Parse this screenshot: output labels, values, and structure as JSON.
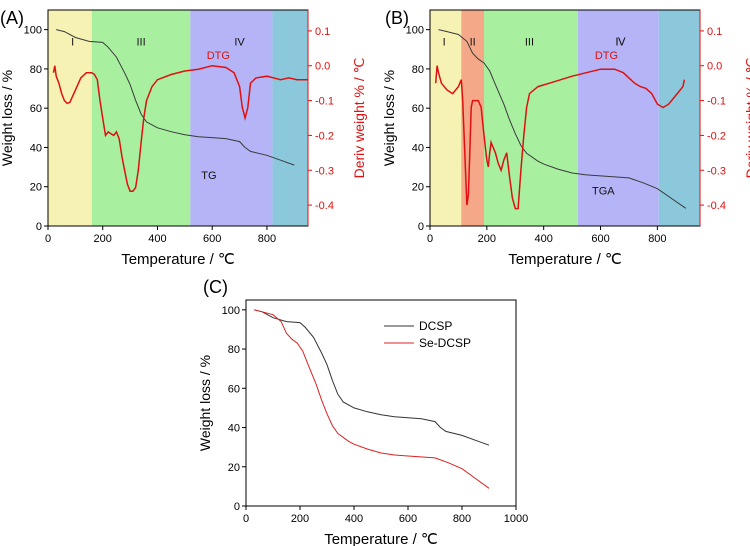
{
  "panels": [
    {
      "label": "(A)",
      "xlabel": "Temperature / ℃",
      "ylabel_left": "Weight loss / %",
      "ylabel_right": "Deriv weight % / ℃",
      "xlim": [
        0,
        950
      ],
      "ylim_left": [
        0,
        110
      ],
      "ylim_right": [
        -0.46,
        0.16
      ],
      "xticks": [
        0,
        200,
        400,
        600,
        800
      ],
      "yticks_left": [
        0,
        20,
        40,
        60,
        80,
        100
      ],
      "yticks_right": [
        0.1,
        0.0,
        -0.1,
        -0.2,
        -0.3,
        -0.4
      ],
      "stage_colors": [
        "#f6f2b4",
        "#a8f0a0",
        "#b4b4f6",
        "#8cc8dc"
      ],
      "stages": [
        {
          "label": "I",
          "from": 0,
          "to": 160,
          "label_x": 90
        },
        {
          "label": "III",
          "from": 160,
          "to": 520,
          "label_x": 340
        },
        {
          "label": "IV",
          "from": 520,
          "to": 820,
          "label_x": 700
        },
        {
          "label": "",
          "from": 820,
          "to": 950,
          "label_x": 885
        }
      ],
      "stage_label_y": 92,
      "tg_label": "TG",
      "tg_label_pos": [
        560,
        24
      ],
      "dtg_label": "DTG",
      "dtg_label_pos": [
        580,
        0.02
      ],
      "tg_curve": [
        [
          30,
          100
        ],
        [
          60,
          99
        ],
        [
          100,
          96
        ],
        [
          150,
          94
        ],
        [
          200,
          93.5
        ],
        [
          220,
          91
        ],
        [
          250,
          86
        ],
        [
          280,
          78
        ],
        [
          300,
          72
        ],
        [
          320,
          64
        ],
        [
          340,
          57
        ],
        [
          360,
          53
        ],
        [
          400,
          50
        ],
        [
          450,
          48
        ],
        [
          500,
          46.5
        ],
        [
          550,
          45.5
        ],
        [
          600,
          45
        ],
        [
          650,
          44.5
        ],
        [
          700,
          43
        ],
        [
          720,
          40
        ],
        [
          740,
          38
        ],
        [
          800,
          36
        ],
        [
          850,
          33.5
        ],
        [
          900,
          31
        ]
      ],
      "dtg_curve": [
        [
          20,
          -0.02
        ],
        [
          25,
          0.0
        ],
        [
          30,
          -0.03
        ],
        [
          40,
          -0.05
        ],
        [
          50,
          -0.08
        ],
        [
          60,
          -0.1
        ],
        [
          70,
          -0.108
        ],
        [
          80,
          -0.105
        ],
        [
          100,
          -0.07
        ],
        [
          120,
          -0.035
        ],
        [
          140,
          -0.02
        ],
        [
          160,
          -0.02
        ],
        [
          170,
          -0.025
        ],
        [
          180,
          -0.04
        ],
        [
          190,
          -0.1
        ],
        [
          200,
          -0.15
        ],
        [
          210,
          -0.2
        ],
        [
          220,
          -0.19
        ],
        [
          230,
          -0.195
        ],
        [
          240,
          -0.2
        ],
        [
          250,
          -0.19
        ],
        [
          260,
          -0.21
        ],
        [
          270,
          -0.26
        ],
        [
          280,
          -0.3
        ],
        [
          290,
          -0.34
        ],
        [
          300,
          -0.36
        ],
        [
          310,
          -0.36
        ],
        [
          320,
          -0.35
        ],
        [
          330,
          -0.3
        ],
        [
          340,
          -0.22
        ],
        [
          350,
          -0.15
        ],
        [
          360,
          -0.1
        ],
        [
          380,
          -0.06
        ],
        [
          400,
          -0.04
        ],
        [
          450,
          -0.025
        ],
        [
          500,
          -0.015
        ],
        [
          550,
          -0.01
        ],
        [
          600,
          0.0
        ],
        [
          650,
          -0.005
        ],
        [
          680,
          -0.02
        ],
        [
          700,
          -0.06
        ],
        [
          710,
          -0.12
        ],
        [
          720,
          -0.15
        ],
        [
          730,
          -0.12
        ],
        [
          740,
          -0.05
        ],
        [
          760,
          -0.035
        ],
        [
          800,
          -0.03
        ],
        [
          850,
          -0.04
        ],
        [
          880,
          -0.035
        ],
        [
          910,
          -0.04
        ],
        [
          950,
          -0.04
        ]
      ]
    },
    {
      "label": "(B)",
      "xlabel": "Temperature / ℃",
      "ylabel_left": "Weight loss / %",
      "ylabel_right": "Deriv weight % / ℃",
      "xlim": [
        0,
        950
      ],
      "ylim_left": [
        0,
        110
      ],
      "ylim_right": [
        -0.46,
        0.16
      ],
      "xticks": [
        0,
        200,
        400,
        600,
        800
      ],
      "yticks_left": [
        0,
        20,
        40,
        60,
        80,
        100
      ],
      "yticks_right": [
        0.1,
        0.0,
        -0.1,
        -0.2,
        -0.3,
        -0.4
      ],
      "stage_colors": [
        "#f6f2b4",
        "#f4a888",
        "#a8f0a0",
        "#b4b4f6",
        "#8cc8dc"
      ],
      "stages": [
        {
          "label": "I",
          "from": 0,
          "to": 110,
          "label_x": 50
        },
        {
          "label": "II",
          "from": 110,
          "to": 190,
          "label_x": 150
        },
        {
          "label": "III",
          "from": 190,
          "to": 520,
          "label_x": 350
        },
        {
          "label": "Ⅳ",
          "from": 520,
          "to": 805,
          "label_x": 670
        },
        {
          "label": "",
          "from": 805,
          "to": 950,
          "label_x": 880
        }
      ],
      "stage_label_y": 92,
      "tg_label": "TGA",
      "tg_label_pos": [
        570,
        16
      ],
      "dtg_label": "DTG",
      "dtg_label_pos": [
        580,
        0.02
      ],
      "tg_curve": [
        [
          30,
          100
        ],
        [
          60,
          99
        ],
        [
          100,
          97.5
        ],
        [
          130,
          94
        ],
        [
          150,
          88
        ],
        [
          170,
          85
        ],
        [
          190,
          83
        ],
        [
          210,
          79
        ],
        [
          230,
          72
        ],
        [
          260,
          62
        ],
        [
          280,
          54
        ],
        [
          300,
          47
        ],
        [
          320,
          41
        ],
        [
          340,
          37
        ],
        [
          380,
          33
        ],
        [
          400,
          31.5
        ],
        [
          450,
          29
        ],
        [
          500,
          27
        ],
        [
          550,
          26
        ],
        [
          600,
          25.5
        ],
        [
          700,
          24.5
        ],
        [
          750,
          22
        ],
        [
          800,
          19
        ],
        [
          850,
          14
        ],
        [
          900,
          9
        ]
      ],
      "dtg_curve": [
        [
          20,
          -0.05
        ],
        [
          25,
          0.0
        ],
        [
          30,
          -0.02
        ],
        [
          40,
          -0.05
        ],
        [
          60,
          -0.07
        ],
        [
          80,
          -0.08
        ],
        [
          100,
          -0.06
        ],
        [
          110,
          -0.04
        ],
        [
          115,
          -0.1
        ],
        [
          120,
          -0.2
        ],
        [
          125,
          -0.3
        ],
        [
          130,
          -0.4
        ],
        [
          135,
          -0.37
        ],
        [
          140,
          -0.25
        ],
        [
          145,
          -0.12
        ],
        [
          150,
          -0.1
        ],
        [
          160,
          -0.1
        ],
        [
          170,
          -0.1
        ],
        [
          180,
          -0.12
        ],
        [
          190,
          -0.2
        ],
        [
          200,
          -0.27
        ],
        [
          205,
          -0.29
        ],
        [
          210,
          -0.25
        ],
        [
          215,
          -0.22
        ],
        [
          220,
          -0.23
        ],
        [
          230,
          -0.25
        ],
        [
          240,
          -0.28
        ],
        [
          250,
          -0.3
        ],
        [
          260,
          -0.27
        ],
        [
          270,
          -0.25
        ],
        [
          280,
          -0.32
        ],
        [
          290,
          -0.38
        ],
        [
          300,
          -0.41
        ],
        [
          310,
          -0.41
        ],
        [
          320,
          -0.3
        ],
        [
          330,
          -0.2
        ],
        [
          340,
          -0.12
        ],
        [
          350,
          -0.08
        ],
        [
          380,
          -0.06
        ],
        [
          420,
          -0.05
        ],
        [
          500,
          -0.03
        ],
        [
          550,
          -0.02
        ],
        [
          600,
          -0.01
        ],
        [
          650,
          -0.01
        ],
        [
          680,
          -0.02
        ],
        [
          700,
          -0.035
        ],
        [
          720,
          -0.05
        ],
        [
          740,
          -0.06
        ],
        [
          760,
          -0.065
        ],
        [
          780,
          -0.08
        ],
        [
          800,
          -0.11
        ],
        [
          820,
          -0.12
        ],
        [
          840,
          -0.11
        ],
        [
          860,
          -0.09
        ],
        [
          880,
          -0.07
        ],
        [
          890,
          -0.06
        ],
        [
          895,
          -0.04
        ]
      ]
    },
    {
      "label": "(C)",
      "xlabel": "Temperature / ℃",
      "ylabel": "Weight loss / %",
      "xlim": [
        0,
        1000
      ],
      "ylim": [
        0,
        105
      ],
      "xticks": [
        0,
        200,
        400,
        600,
        800,
        1000
      ],
      "yticks": [
        0,
        20,
        40,
        60,
        80,
        100
      ],
      "legend_position": "top-right",
      "series": [
        {
          "name": "DCSP",
          "color": "#333333",
          "points": [
            [
              30,
              100
            ],
            [
              60,
              99
            ],
            [
              100,
              96
            ],
            [
              150,
              94
            ],
            [
              200,
              93.5
            ],
            [
              220,
              91
            ],
            [
              250,
              86
            ],
            [
              280,
              78
            ],
            [
              300,
              72
            ],
            [
              320,
              64
            ],
            [
              340,
              57
            ],
            [
              360,
              53
            ],
            [
              400,
              50
            ],
            [
              450,
              48
            ],
            [
              500,
              46.5
            ],
            [
              550,
              45.5
            ],
            [
              600,
              45
            ],
            [
              650,
              44.5
            ],
            [
              700,
              43
            ],
            [
              720,
              40
            ],
            [
              740,
              38
            ],
            [
              800,
              36
            ],
            [
              850,
              33.5
            ],
            [
              900,
              31
            ]
          ]
        },
        {
          "name": "Se-DCSP",
          "color": "#e02020",
          "points": [
            [
              30,
              100
            ],
            [
              60,
              99
            ],
            [
              100,
              97.5
            ],
            [
              130,
              94
            ],
            [
              150,
              88
            ],
            [
              170,
              85
            ],
            [
              190,
              83
            ],
            [
              210,
              79
            ],
            [
              230,
              72
            ],
            [
              260,
              62
            ],
            [
              280,
              54
            ],
            [
              300,
              47
            ],
            [
              320,
              41
            ],
            [
              340,
              37
            ],
            [
              380,
              33
            ],
            [
              400,
              31.5
            ],
            [
              450,
              29
            ],
            [
              500,
              27
            ],
            [
              550,
              26
            ],
            [
              600,
              25.5
            ],
            [
              700,
              24.5
            ],
            [
              750,
              22
            ],
            [
              800,
              19
            ],
            [
              850,
              14
            ],
            [
              900,
              9
            ]
          ]
        }
      ]
    }
  ]
}
